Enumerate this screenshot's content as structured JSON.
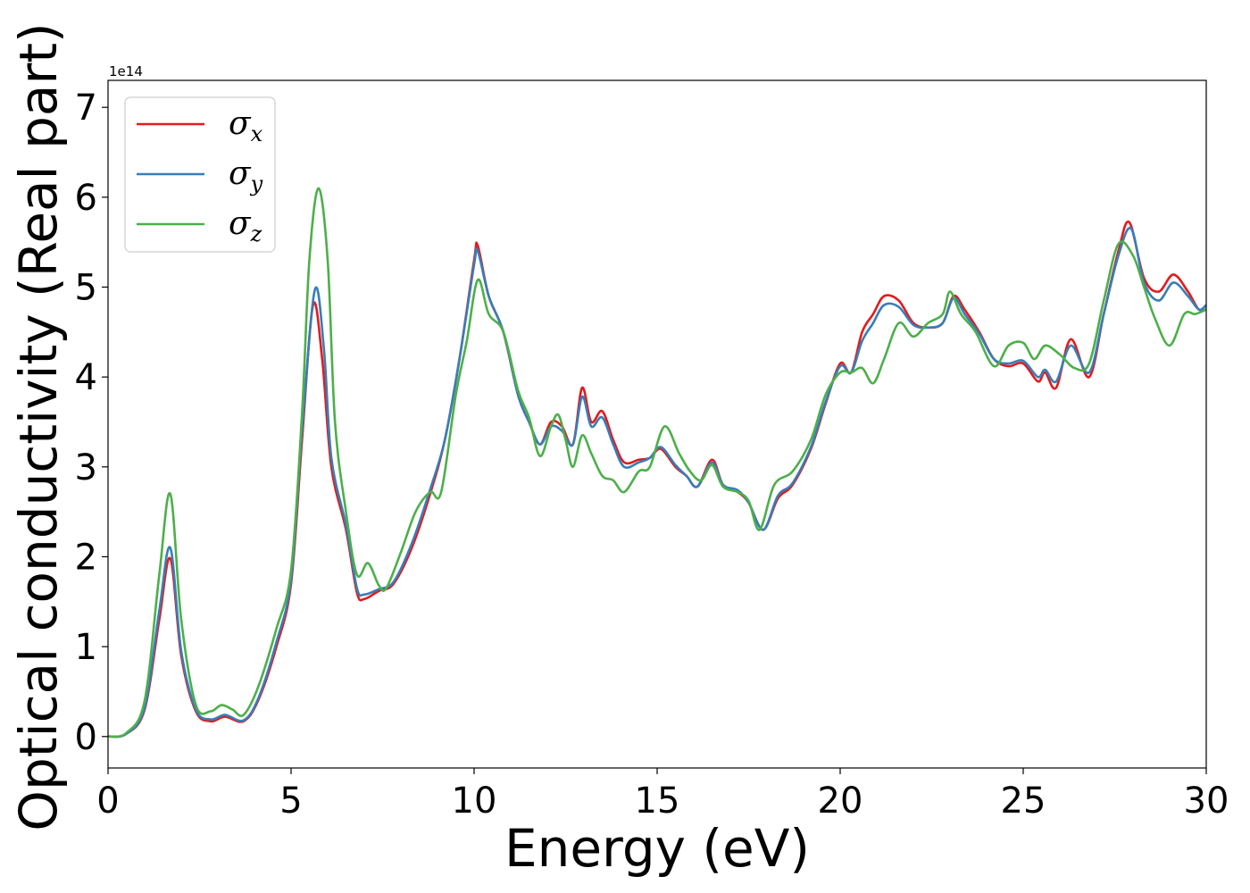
{
  "chart_data": {
    "type": "line",
    "xlabel": "Energy (eV)",
    "ylabel": "Optical conductivity (Real part)",
    "y_offset_label": "1e14",
    "xlim": [
      0,
      30
    ],
    "ylim": [
      -0.35,
      7.3
    ],
    "xticks": [
      0,
      5,
      10,
      15,
      20,
      25,
      30
    ],
    "xtick_labels": [
      "0",
      "5",
      "10",
      "15",
      "20",
      "25",
      "30"
    ],
    "yticks": [
      0,
      1,
      2,
      3,
      4,
      5,
      6,
      7
    ],
    "ytick_labels": [
      "0",
      "1",
      "2",
      "3",
      "4",
      "5",
      "6",
      "7"
    ],
    "grid": false,
    "legend_position": "top-left",
    "series": [
      {
        "name": "σx",
        "symbol": "σ",
        "subscript": "x",
        "color": "#e41a1c",
        "points": [
          [
            0,
            0
          ],
          [
            0.5,
            0.03
          ],
          [
            1.0,
            0.3
          ],
          [
            1.4,
            1.3
          ],
          [
            1.7,
            1.98
          ],
          [
            2.0,
            0.9
          ],
          [
            2.4,
            0.28
          ],
          [
            2.8,
            0.17
          ],
          [
            3.2,
            0.22
          ],
          [
            3.7,
            0.17
          ],
          [
            4.1,
            0.4
          ],
          [
            4.6,
            1.0
          ],
          [
            5.0,
            1.7
          ],
          [
            5.3,
            3.3
          ],
          [
            5.6,
            4.8
          ],
          [
            5.85,
            4.2
          ],
          [
            6.1,
            3.0
          ],
          [
            6.5,
            2.3
          ],
          [
            6.8,
            1.6
          ],
          [
            7.0,
            1.53
          ],
          [
            7.4,
            1.62
          ],
          [
            7.8,
            1.7
          ],
          [
            8.3,
            2.1
          ],
          [
            8.8,
            2.7
          ],
          [
            9.2,
            3.3
          ],
          [
            9.6,
            4.2
          ],
          [
            10.0,
            5.3
          ],
          [
            10.1,
            5.46
          ],
          [
            10.4,
            4.9
          ],
          [
            10.8,
            4.5
          ],
          [
            11.2,
            3.8
          ],
          [
            11.5,
            3.5
          ],
          [
            11.8,
            3.25
          ],
          [
            12.1,
            3.5
          ],
          [
            12.4,
            3.45
          ],
          [
            12.7,
            3.25
          ],
          [
            12.95,
            3.88
          ],
          [
            13.2,
            3.5
          ],
          [
            13.5,
            3.62
          ],
          [
            13.8,
            3.3
          ],
          [
            14.1,
            3.05
          ],
          [
            14.5,
            3.08
          ],
          [
            14.8,
            3.1
          ],
          [
            15.1,
            3.2
          ],
          [
            15.5,
            3.0
          ],
          [
            15.8,
            2.9
          ],
          [
            16.1,
            2.78
          ],
          [
            16.5,
            3.08
          ],
          [
            16.8,
            2.8
          ],
          [
            17.2,
            2.72
          ],
          [
            17.5,
            2.6
          ],
          [
            17.9,
            2.3
          ],
          [
            18.3,
            2.65
          ],
          [
            18.7,
            2.8
          ],
          [
            19.2,
            3.2
          ],
          [
            19.6,
            3.7
          ],
          [
            20.0,
            4.15
          ],
          [
            20.3,
            4.05
          ],
          [
            20.6,
            4.5
          ],
          [
            20.9,
            4.7
          ],
          [
            21.2,
            4.9
          ],
          [
            21.6,
            4.85
          ],
          [
            22.0,
            4.6
          ],
          [
            22.4,
            4.55
          ],
          [
            22.8,
            4.6
          ],
          [
            23.1,
            4.9
          ],
          [
            23.4,
            4.75
          ],
          [
            23.8,
            4.5
          ],
          [
            24.2,
            4.2
          ],
          [
            24.6,
            4.12
          ],
          [
            25.0,
            4.15
          ],
          [
            25.4,
            3.95
          ],
          [
            25.6,
            4.05
          ],
          [
            25.9,
            3.88
          ],
          [
            26.3,
            4.42
          ],
          [
            26.8,
            4.0
          ],
          [
            27.2,
            4.7
          ],
          [
            27.6,
            5.4
          ],
          [
            27.9,
            5.72
          ],
          [
            28.3,
            5.1
          ],
          [
            28.7,
            4.95
          ],
          [
            29.1,
            5.14
          ],
          [
            29.5,
            4.95
          ],
          [
            29.8,
            4.75
          ],
          [
            30.0,
            4.8
          ]
        ]
      },
      {
        "name": "σy",
        "symbol": "σ",
        "subscript": "y",
        "color": "#377eb8",
        "points": [
          [
            0,
            0
          ],
          [
            0.5,
            0.03
          ],
          [
            1.0,
            0.32
          ],
          [
            1.4,
            1.4
          ],
          [
            1.7,
            2.1
          ],
          [
            2.0,
            0.95
          ],
          [
            2.4,
            0.3
          ],
          [
            2.8,
            0.19
          ],
          [
            3.2,
            0.24
          ],
          [
            3.7,
            0.18
          ],
          [
            4.1,
            0.42
          ],
          [
            4.6,
            1.05
          ],
          [
            5.0,
            1.75
          ],
          [
            5.3,
            3.4
          ],
          [
            5.65,
            4.97
          ],
          [
            5.9,
            4.3
          ],
          [
            6.1,
            3.1
          ],
          [
            6.5,
            2.35
          ],
          [
            6.8,
            1.65
          ],
          [
            7.0,
            1.58
          ],
          [
            7.4,
            1.64
          ],
          [
            7.8,
            1.72
          ],
          [
            8.3,
            2.15
          ],
          [
            8.8,
            2.75
          ],
          [
            9.2,
            3.3
          ],
          [
            9.6,
            4.2
          ],
          [
            10.0,
            5.25
          ],
          [
            10.1,
            5.4
          ],
          [
            10.4,
            4.9
          ],
          [
            10.8,
            4.5
          ],
          [
            11.2,
            3.8
          ],
          [
            11.5,
            3.5
          ],
          [
            11.8,
            3.25
          ],
          [
            12.1,
            3.45
          ],
          [
            12.4,
            3.4
          ],
          [
            12.7,
            3.25
          ],
          [
            12.95,
            3.78
          ],
          [
            13.2,
            3.45
          ],
          [
            13.5,
            3.55
          ],
          [
            13.8,
            3.25
          ],
          [
            14.1,
            3.0
          ],
          [
            14.5,
            3.05
          ],
          [
            14.8,
            3.1
          ],
          [
            15.1,
            3.22
          ],
          [
            15.5,
            3.02
          ],
          [
            15.8,
            2.9
          ],
          [
            16.1,
            2.78
          ],
          [
            16.5,
            3.05
          ],
          [
            16.8,
            2.8
          ],
          [
            17.2,
            2.74
          ],
          [
            17.5,
            2.6
          ],
          [
            17.9,
            2.3
          ],
          [
            18.3,
            2.68
          ],
          [
            18.7,
            2.82
          ],
          [
            19.2,
            3.22
          ],
          [
            19.6,
            3.72
          ],
          [
            20.0,
            4.12
          ],
          [
            20.3,
            4.05
          ],
          [
            20.6,
            4.4
          ],
          [
            20.9,
            4.6
          ],
          [
            21.2,
            4.8
          ],
          [
            21.6,
            4.78
          ],
          [
            22.0,
            4.58
          ],
          [
            22.4,
            4.55
          ],
          [
            22.8,
            4.6
          ],
          [
            23.1,
            4.88
          ],
          [
            23.4,
            4.7
          ],
          [
            23.8,
            4.48
          ],
          [
            24.2,
            4.2
          ],
          [
            24.6,
            4.15
          ],
          [
            25.0,
            4.18
          ],
          [
            25.4,
            4.0
          ],
          [
            25.6,
            4.08
          ],
          [
            25.9,
            3.95
          ],
          [
            26.3,
            4.35
          ],
          [
            26.8,
            4.05
          ],
          [
            27.2,
            4.7
          ],
          [
            27.6,
            5.35
          ],
          [
            27.95,
            5.65
          ],
          [
            28.3,
            5.05
          ],
          [
            28.7,
            4.85
          ],
          [
            29.1,
            5.05
          ],
          [
            29.5,
            4.9
          ],
          [
            29.8,
            4.75
          ],
          [
            30.0,
            4.8
          ]
        ]
      },
      {
        "name": "σz",
        "symbol": "σ",
        "subscript": "z",
        "color": "#4daf4a",
        "points": [
          [
            0,
            0
          ],
          [
            0.5,
            0.04
          ],
          [
            1.0,
            0.4
          ],
          [
            1.4,
            1.8
          ],
          [
            1.7,
            2.7
          ],
          [
            2.0,
            1.3
          ],
          [
            2.4,
            0.35
          ],
          [
            2.8,
            0.28
          ],
          [
            3.1,
            0.35
          ],
          [
            3.4,
            0.3
          ],
          [
            3.7,
            0.24
          ],
          [
            4.1,
            0.55
          ],
          [
            4.6,
            1.2
          ],
          [
            5.0,
            1.85
          ],
          [
            5.3,
            3.6
          ],
          [
            5.5,
            5.3
          ],
          [
            5.75,
            6.1
          ],
          [
            6.0,
            5.3
          ],
          [
            6.2,
            3.5
          ],
          [
            6.5,
            2.5
          ],
          [
            6.8,
            1.8
          ],
          [
            7.1,
            1.93
          ],
          [
            7.4,
            1.68
          ],
          [
            7.6,
            1.65
          ],
          [
            8.0,
            2.05
          ],
          [
            8.4,
            2.5
          ],
          [
            8.8,
            2.72
          ],
          [
            9.1,
            2.72
          ],
          [
            9.5,
            3.8
          ],
          [
            9.8,
            4.4
          ],
          [
            10.1,
            5.08
          ],
          [
            10.4,
            4.7
          ],
          [
            10.8,
            4.5
          ],
          [
            11.2,
            3.85
          ],
          [
            11.5,
            3.55
          ],
          [
            11.8,
            3.12
          ],
          [
            12.1,
            3.45
          ],
          [
            12.3,
            3.58
          ],
          [
            12.5,
            3.3
          ],
          [
            12.7,
            3.0
          ],
          [
            12.95,
            3.35
          ],
          [
            13.2,
            3.15
          ],
          [
            13.5,
            2.9
          ],
          [
            13.8,
            2.85
          ],
          [
            14.1,
            2.72
          ],
          [
            14.5,
            2.95
          ],
          [
            14.8,
            3.0
          ],
          [
            15.2,
            3.45
          ],
          [
            15.6,
            3.15
          ],
          [
            15.9,
            2.95
          ],
          [
            16.2,
            2.85
          ],
          [
            16.5,
            3.02
          ],
          [
            16.8,
            2.78
          ],
          [
            17.2,
            2.72
          ],
          [
            17.5,
            2.62
          ],
          [
            17.8,
            2.3
          ],
          [
            18.2,
            2.8
          ],
          [
            18.7,
            2.95
          ],
          [
            19.2,
            3.3
          ],
          [
            19.6,
            3.8
          ],
          [
            20.0,
            4.05
          ],
          [
            20.3,
            4.05
          ],
          [
            20.6,
            4.1
          ],
          [
            20.9,
            3.93
          ],
          [
            21.2,
            4.2
          ],
          [
            21.6,
            4.6
          ],
          [
            22.0,
            4.45
          ],
          [
            22.4,
            4.6
          ],
          [
            22.8,
            4.7
          ],
          [
            23.0,
            4.95
          ],
          [
            23.3,
            4.7
          ],
          [
            23.7,
            4.5
          ],
          [
            24.2,
            4.12
          ],
          [
            24.6,
            4.35
          ],
          [
            25.0,
            4.38
          ],
          [
            25.3,
            4.2
          ],
          [
            25.6,
            4.35
          ],
          [
            26.0,
            4.25
          ],
          [
            26.4,
            4.1
          ],
          [
            26.8,
            4.15
          ],
          [
            27.2,
            4.85
          ],
          [
            27.6,
            5.48
          ],
          [
            28.0,
            5.35
          ],
          [
            28.3,
            5.0
          ],
          [
            28.6,
            4.65
          ],
          [
            29.0,
            4.35
          ],
          [
            29.4,
            4.7
          ],
          [
            29.7,
            4.7
          ],
          [
            30.0,
            4.75
          ]
        ]
      }
    ]
  }
}
